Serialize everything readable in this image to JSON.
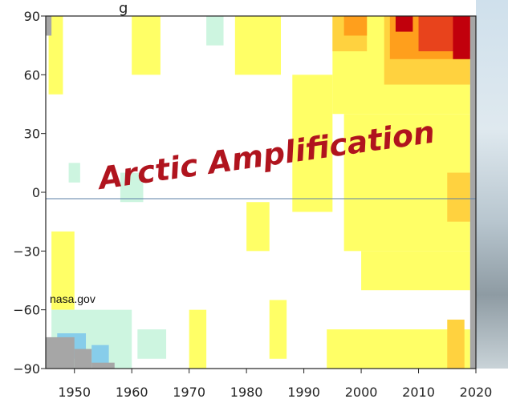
{
  "chart_data": {
    "type": "heatmap",
    "title": "",
    "xlabel": "",
    "ylabel": "",
    "xlim": [
      1945,
      2020
    ],
    "ylim": [
      -90,
      90
    ],
    "x_ticks": [
      "1950",
      "1960",
      "1970",
      "1980",
      "1990",
      "2000",
      "2010",
      "2020"
    ],
    "y_ticks": [
      "90",
      "60",
      "30",
      "0",
      "−30",
      "−60",
      "−90"
    ],
    "zero_line": true,
    "colors": {
      "neutral": "#ffffff",
      "slight_warm": "#ffff66",
      "warm": "#ffd23f",
      "warmer": "#ff9f1c",
      "hot": "#e8431c",
      "hottest": "#c1000c",
      "slight_cool": "#cdf5e0",
      "cool": "#87cdea",
      "no_data": "#a6a6a6"
    },
    "regions": [
      {
        "level": "slight_warm",
        "x0": 1945.5,
        "x1": 1948,
        "y0": 50,
        "y1": 90
      },
      {
        "level": "slight_warm",
        "x0": 1946,
        "x1": 1950,
        "y0": -60,
        "y1": -20
      },
      {
        "level": "slight_warm",
        "x0": 1995,
        "x1": 2019,
        "y0": 40,
        "y1": 90
      },
      {
        "level": "slight_warm",
        "x0": 1997,
        "x1": 2019,
        "y0": -30,
        "y1": 40
      },
      {
        "level": "slight_warm",
        "x0": 1994,
        "x1": 2019,
        "y0": -90,
        "y1": -70
      },
      {
        "level": "slight_warm",
        "x0": 2000,
        "x1": 2019,
        "y0": -50,
        "y1": -30
      },
      {
        "level": "slight_warm",
        "x0": 1988,
        "x1": 1995,
        "y0": -10,
        "y1": 60
      },
      {
        "level": "slight_warm",
        "x0": 1960,
        "x1": 1965,
        "y0": 60,
        "y1": 90
      },
      {
        "level": "slight_warm",
        "x0": 1978,
        "x1": 1986,
        "y0": 60,
        "y1": 90
      },
      {
        "level": "slight_warm",
        "x0": 1980,
        "x1": 1984,
        "y0": -30,
        "y1": -5
      },
      {
        "level": "slight_warm",
        "x0": 1984,
        "x1": 1987,
        "y0": -85,
        "y1": -55
      },
      {
        "level": "slight_warm",
        "x0": 1970,
        "x1": 1973,
        "y0": -90,
        "y1": -60
      },
      {
        "level": "slight_warm",
        "x0": 1954,
        "x1": 1957,
        "y0": -90,
        "y1": -70
      },
      {
        "level": "warm",
        "x0": 2004,
        "x1": 2019,
        "y0": 55,
        "y1": 90
      },
      {
        "level": "warm",
        "x0": 1995,
        "x1": 2001,
        "y0": 72,
        "y1": 90
      },
      {
        "level": "warm",
        "x0": 2015,
        "x1": 2019,
        "y0": -15,
        "y1": 10
      },
      {
        "level": "warm",
        "x0": 2015,
        "x1": 2018,
        "y0": -90,
        "y1": -65
      },
      {
        "level": "warmer",
        "x0": 2005,
        "x1": 2019,
        "y0": 68,
        "y1": 90
      },
      {
        "level": "warmer",
        "x0": 1997,
        "x1": 2001,
        "y0": 80,
        "y1": 90
      },
      {
        "level": "hot",
        "x0": 2010,
        "x1": 2019,
        "y0": 72,
        "y1": 90
      },
      {
        "level": "hottest",
        "x0": 2016,
        "x1": 2019,
        "y0": 68,
        "y1": 90
      },
      {
        "level": "hottest",
        "x0": 2006,
        "x1": 2009,
        "y0": 82,
        "y1": 90
      },
      {
        "level": "slight_cool",
        "x0": 1946,
        "x1": 1960,
        "y0": -90,
        "y1": -60
      },
      {
        "level": "slight_cool",
        "x0": 1958,
        "x1": 1962,
        "y0": -5,
        "y1": 10
      },
      {
        "level": "slight_cool",
        "x0": 1949,
        "x1": 1951,
        "y0": 5,
        "y1": 15
      },
      {
        "level": "slight_cool",
        "x0": 1973,
        "x1": 1976,
        "y0": 75,
        "y1": 90
      },
      {
        "level": "slight_cool",
        "x0": 1961,
        "x1": 1966,
        "y0": -85,
        "y1": -70
      },
      {
        "level": "cool",
        "x0": 1947,
        "x1": 1952,
        "y0": -85,
        "y1": -72
      },
      {
        "level": "cool",
        "x0": 1953,
        "x1": 1956,
        "y0": -88,
        "y1": -78
      },
      {
        "level": "no_data",
        "x0": 1945,
        "x1": 1946,
        "y0": 80,
        "y1": 90
      },
      {
        "level": "no_data",
        "x0": 2019,
        "x1": 2020,
        "y0": -90,
        "y1": 90
      },
      {
        "level": "no_data",
        "x0": 1945,
        "x1": 1950,
        "y0": -90,
        "y1": -74
      },
      {
        "level": "no_data",
        "x0": 1950,
        "x1": 1953,
        "y0": -90,
        "y1": -80
      },
      {
        "level": "no_data",
        "x0": 1953,
        "x1": 1957,
        "y0": -90,
        "y1": -87
      }
    ]
  },
  "annotations": {
    "overlay_title": "Arctic Amplification",
    "credit": "nasa.gov",
    "top_partial": "g"
  }
}
